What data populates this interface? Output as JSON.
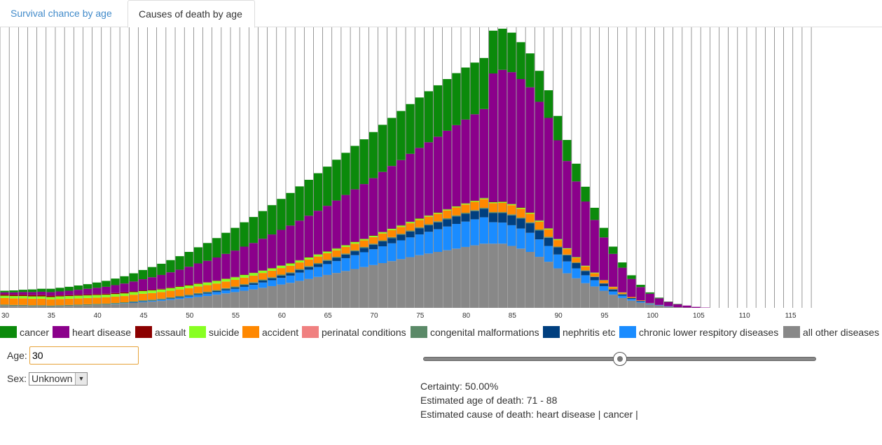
{
  "tabs": [
    {
      "label": "Survival chance by age"
    },
    {
      "label": "Causes of death by age"
    }
  ],
  "chart_data": {
    "type": "bar",
    "stacked": true,
    "x_ticks": [
      "30",
      "35",
      "40",
      "45",
      "50",
      "55",
      "60",
      "65",
      "70",
      "75",
      "80",
      "85",
      "90",
      "95",
      "100",
      "105",
      "110",
      "115"
    ],
    "x_start": 30,
    "x_end": 117,
    "series": [
      {
        "name": "all other diseases",
        "color": "#888888",
        "values": [
          0.7,
          0.6,
          0.6,
          0.5,
          0.5,
          0.4,
          0.5,
          0.6,
          0.7,
          0.8,
          0.9,
          1.0,
          1.1,
          1.3,
          1.5,
          1.7,
          1.9,
          2.1,
          2.4,
          2.7,
          3.0,
          3.3,
          3.6,
          4.0,
          4.4,
          4.8,
          5.2,
          5.6,
          6.1,
          6.6,
          7.1,
          7.6,
          8.2,
          8.8,
          9.4,
          10.0,
          10.6,
          11.2,
          11.8,
          12.4,
          13.0,
          13.6,
          14.2,
          14.8,
          15.4,
          16.0,
          16.5,
          17.0,
          17.5,
          18.0,
          18.5,
          19.0,
          19.5,
          19.5,
          19.5,
          18.8,
          18.0,
          17.0,
          15.5,
          14.0,
          12.0,
          10.5,
          9.0,
          7.5,
          6.5,
          5.2,
          4.0,
          3.0,
          2.2,
          1.6,
          1.1,
          0.7,
          0.4,
          0.2,
          0.1,
          0,
          0,
          0,
          0,
          0,
          0,
          0,
          0,
          0,
          0,
          0,
          0,
          0
        ]
      },
      {
        "name": "chronic lower respitory diseases",
        "color": "#1a8cff",
        "values": [
          0,
          0,
          0,
          0,
          0,
          0,
          0,
          0,
          0,
          0,
          0,
          0,
          0.1,
          0.1,
          0.1,
          0.2,
          0.2,
          0.3,
          0.3,
          0.4,
          0.5,
          0.6,
          0.7,
          0.8,
          0.9,
          1.0,
          1.2,
          1.4,
          1.6,
          1.8,
          2.0,
          2.2,
          2.5,
          2.8,
          3.0,
          3.3,
          3.6,
          3.9,
          4.2,
          4.5,
          4.8,
          5.1,
          5.4,
          5.7,
          6.0,
          6.3,
          6.6,
          6.9,
          7.2,
          7.5,
          7.7,
          7.9,
          8.0,
          6.5,
          6.4,
          6.3,
          6.1,
          5.8,
          5.3,
          4.8,
          4.2,
          3.6,
          3.0,
          2.4,
          1.9,
          1.4,
          1.0,
          0.7,
          0.5,
          0.3,
          0.2,
          0.1,
          0.1,
          0,
          0,
          0,
          0,
          0,
          0,
          0,
          0,
          0,
          0,
          0,
          0,
          0,
          0,
          0
        ]
      },
      {
        "name": "nephritis etc",
        "color": "#003f7f",
        "values": [
          0,
          0,
          0,
          0,
          0,
          0,
          0,
          0,
          0,
          0,
          0,
          0,
          0,
          0,
          0.1,
          0.1,
          0.1,
          0.1,
          0.2,
          0.2,
          0.2,
          0.3,
          0.3,
          0.3,
          0.4,
          0.4,
          0.5,
          0.5,
          0.6,
          0.6,
          0.7,
          0.7,
          0.8,
          0.8,
          0.9,
          1.0,
          1.0,
          1.1,
          1.2,
          1.3,
          1.4,
          1.5,
          1.6,
          1.7,
          1.8,
          1.9,
          2.0,
          2.1,
          2.2,
          2.3,
          2.4,
          2.5,
          2.6,
          2.8,
          2.9,
          3.0,
          3.0,
          2.9,
          2.7,
          2.5,
          2.2,
          1.9,
          1.6,
          1.3,
          1.0,
          0.8,
          0.6,
          0.4,
          0.3,
          0.2,
          0.1,
          0.1,
          0,
          0,
          0,
          0,
          0,
          0,
          0,
          0,
          0,
          0,
          0,
          0,
          0,
          0,
          0,
          0
        ]
      },
      {
        "name": "congenital malformations",
        "color": "#5b8a68",
        "values": [
          0.3,
          0.3,
          0.3,
          0.3,
          0.3,
          0.3,
          0.3,
          0.3,
          0.3,
          0.3,
          0.3,
          0.3,
          0.3,
          0.3,
          0.3,
          0.3,
          0.3,
          0.3,
          0.3,
          0.3,
          0.3,
          0.3,
          0.3,
          0.3,
          0.3,
          0.3,
          0.3,
          0.3,
          0.3,
          0.3,
          0.3,
          0.3,
          0.3,
          0.3,
          0.3,
          0.3,
          0.3,
          0.3,
          0.3,
          0.3,
          0.3,
          0.3,
          0.3,
          0.3,
          0.3,
          0.3,
          0.3,
          0.3,
          0.3,
          0.3,
          0.3,
          0.3,
          0.3,
          0.3,
          0.3,
          0.3,
          0.3,
          0.3,
          0.3,
          0.3,
          0.2,
          0.2,
          0.2,
          0.2,
          0.1,
          0.1,
          0.1,
          0.1,
          0,
          0,
          0,
          0,
          0,
          0,
          0,
          0,
          0,
          0,
          0,
          0,
          0,
          0,
          0,
          0,
          0,
          0,
          0,
          0
        ]
      },
      {
        "name": "perinatal conditions",
        "color": "#f08080",
        "values": [
          0,
          0,
          0,
          0,
          0,
          0,
          0,
          0,
          0,
          0,
          0,
          0,
          0,
          0,
          0,
          0,
          0,
          0,
          0,
          0,
          0,
          0,
          0,
          0,
          0,
          0,
          0,
          0,
          0,
          0,
          0,
          0,
          0,
          0,
          0,
          0,
          0,
          0,
          0,
          0,
          0,
          0,
          0,
          0,
          0,
          0,
          0,
          0,
          0,
          0,
          0,
          0,
          0,
          0,
          0,
          0,
          0,
          0,
          0,
          0,
          0,
          0,
          0,
          0,
          0,
          0,
          0,
          0,
          0,
          0,
          0,
          0,
          0,
          0,
          0,
          0,
          0,
          0,
          0,
          0,
          0,
          0,
          0,
          0,
          0,
          0,
          0,
          0
        ]
      },
      {
        "name": "accident",
        "color": "#ff8800",
        "values": [
          2.0,
          2.0,
          2.0,
          2.0,
          2.0,
          1.9,
          1.9,
          1.9,
          1.9,
          1.9,
          1.9,
          1.9,
          1.9,
          1.9,
          2.0,
          2.0,
          2.0,
          2.0,
          2.0,
          2.0,
          2.0,
          2.0,
          2.0,
          2.0,
          2.0,
          2.0,
          2.0,
          2.0,
          2.0,
          2.0,
          2.0,
          2.0,
          2.0,
          2.0,
          2.0,
          2.0,
          2.0,
          2.0,
          2.0,
          2.0,
          2.0,
          2.1,
          2.1,
          2.1,
          2.2,
          2.2,
          2.3,
          2.3,
          2.4,
          2.4,
          2.5,
          2.5,
          2.6,
          2.7,
          2.8,
          2.8,
          2.7,
          2.6,
          2.4,
          2.2,
          2.0,
          1.7,
          1.4,
          1.2,
          1.0,
          0.8,
          0.6,
          0.4,
          0.3,
          0.2,
          0.1,
          0,
          0,
          0,
          0,
          0,
          0,
          0,
          0,
          0,
          0,
          0,
          0,
          0,
          0,
          0,
          0,
          0
        ]
      },
      {
        "name": "suicide",
        "color": "#88ff22",
        "values": [
          0.7,
          0.7,
          0.7,
          0.7,
          0.7,
          0.7,
          0.8,
          0.8,
          0.8,
          0.8,
          0.8,
          0.8,
          0.8,
          0.8,
          0.8,
          0.8,
          0.8,
          0.8,
          0.8,
          0.8,
          0.8,
          0.8,
          0.8,
          0.8,
          0.8,
          0.8,
          0.8,
          0.8,
          0.7,
          0.7,
          0.7,
          0.7,
          0.6,
          0.6,
          0.6,
          0.5,
          0.5,
          0.5,
          0.5,
          0.4,
          0.4,
          0.4,
          0.4,
          0.4,
          0.4,
          0.4,
          0.3,
          0.3,
          0.3,
          0.3,
          0.3,
          0.3,
          0.3,
          0.3,
          0.3,
          0.3,
          0.3,
          0.3,
          0.3,
          0.3,
          0.3,
          0.2,
          0.2,
          0.2,
          0.2,
          0.1,
          0.1,
          0.1,
          0,
          0,
          0,
          0,
          0,
          0,
          0,
          0,
          0,
          0,
          0,
          0,
          0,
          0,
          0,
          0,
          0,
          0,
          0,
          0
        ]
      },
      {
        "name": "assault",
        "color": "#8b0000",
        "values": [
          0.4,
          0.4,
          0.4,
          0.4,
          0.4,
          0.4,
          0.3,
          0.3,
          0.3,
          0.3,
          0.3,
          0.3,
          0.3,
          0.3,
          0.2,
          0.2,
          0.2,
          0.2,
          0.2,
          0.2,
          0.2,
          0.2,
          0.1,
          0.1,
          0.1,
          0.1,
          0.1,
          0.1,
          0.1,
          0.1,
          0.1,
          0.1,
          0.1,
          0.1,
          0.1,
          0.1,
          0.1,
          0.1,
          0.1,
          0.1,
          0.1,
          0.1,
          0.1,
          0.1,
          0.1,
          0.1,
          0.1,
          0.1,
          0.1,
          0.1,
          0.1,
          0.1,
          0.1,
          0.1,
          0.1,
          0.1,
          0.1,
          0.1,
          0.1,
          0.1,
          0,
          0,
          0,
          0,
          0,
          0,
          0,
          0,
          0,
          0,
          0,
          0,
          0,
          0,
          0,
          0,
          0,
          0,
          0,
          0,
          0,
          0,
          0,
          0,
          0,
          0,
          0,
          0
        ]
      },
      {
        "name": "heart disease",
        "color": "#8b008b",
        "values": [
          0.6,
          0.7,
          0.8,
          0.9,
          1.0,
          1.1,
          1.2,
          1.3,
          1.5,
          1.7,
          1.9,
          2.1,
          2.4,
          2.7,
          3.0,
          3.4,
          3.8,
          4.2,
          4.6,
          5.0,
          5.5,
          6.0,
          6.5,
          7.0,
          7.5,
          8.0,
          8.5,
          9.0,
          9.6,
          10.2,
          10.8,
          11.4,
          12.0,
          12.6,
          13.2,
          13.8,
          14.5,
          15.2,
          15.9,
          16.6,
          17.4,
          18.2,
          19.0,
          19.8,
          20.6,
          21.4,
          22.2,
          23.0,
          23.8,
          24.6,
          25.4,
          26.2,
          27.0,
          39.0,
          40.0,
          40.0,
          39.0,
          38.0,
          36.0,
          33.5,
          30.0,
          26.5,
          23.0,
          19.5,
          16.0,
          13.0,
          10.0,
          7.5,
          5.5,
          4.0,
          2.8,
          2.0,
          1.3,
          0.9,
          0.6,
          0.3,
          0.1,
          0,
          0,
          0,
          0,
          0,
          0,
          0,
          0,
          0,
          0,
          0
        ]
      },
      {
        "name": "cancer",
        "color": "#0b8a0b",
        "values": [
          0.5,
          0.6,
          0.7,
          0.8,
          0.9,
          1.0,
          1.1,
          1.2,
          1.3,
          1.4,
          1.6,
          1.8,
          2.0,
          2.2,
          2.5,
          2.8,
          3.1,
          3.4,
          3.7,
          4.1,
          4.5,
          4.9,
          5.4,
          5.9,
          6.4,
          6.9,
          7.4,
          7.9,
          8.4,
          8.9,
          9.4,
          9.9,
          10.4,
          10.9,
          11.4,
          11.9,
          12.4,
          12.8,
          13.2,
          13.6,
          14.0,
          14.3,
          14.6,
          14.9,
          15.1,
          15.3,
          15.5,
          15.6,
          15.7,
          15.8,
          15.8,
          15.7,
          15.5,
          13.0,
          12.5,
          12.0,
          11.2,
          10.3,
          9.4,
          8.4,
          7.4,
          6.4,
          5.4,
          4.5,
          3.7,
          2.9,
          2.2,
          1.6,
          1.1,
          0.7,
          0.4,
          0.2,
          0.1,
          0.1,
          0,
          0,
          0,
          0,
          0,
          0,
          0,
          0,
          0,
          0,
          0,
          0,
          0,
          0
        ]
      }
    ]
  },
  "legend": [
    {
      "label": "cancer",
      "color": "#0b8a0b"
    },
    {
      "label": "heart disease",
      "color": "#8b008b"
    },
    {
      "label": "assault",
      "color": "#8b0000"
    },
    {
      "label": "suicide",
      "color": "#88ff22"
    },
    {
      "label": "accident",
      "color": "#ff8800"
    },
    {
      "label": "perinatal conditions",
      "color": "#f08080"
    },
    {
      "label": "congenital malformations",
      "color": "#5b8a68"
    },
    {
      "label": "nephritis etc",
      "color": "#003f7f"
    },
    {
      "label": "chronic lower respitory diseases",
      "color": "#1a8cff"
    },
    {
      "label": "all other diseases",
      "color": "#888888"
    }
  ],
  "controls": {
    "age_label": "Age:",
    "age_value": "30",
    "sex_label": "Sex:",
    "sex_value": "Unknown",
    "slider_value": 0.5
  },
  "info": {
    "certainty": "Certainty: 50.00%",
    "age_of_death": "Estimated age of death: 71 - 88",
    "cause_of_death": "Estimated cause of death: heart disease | cancer |"
  }
}
